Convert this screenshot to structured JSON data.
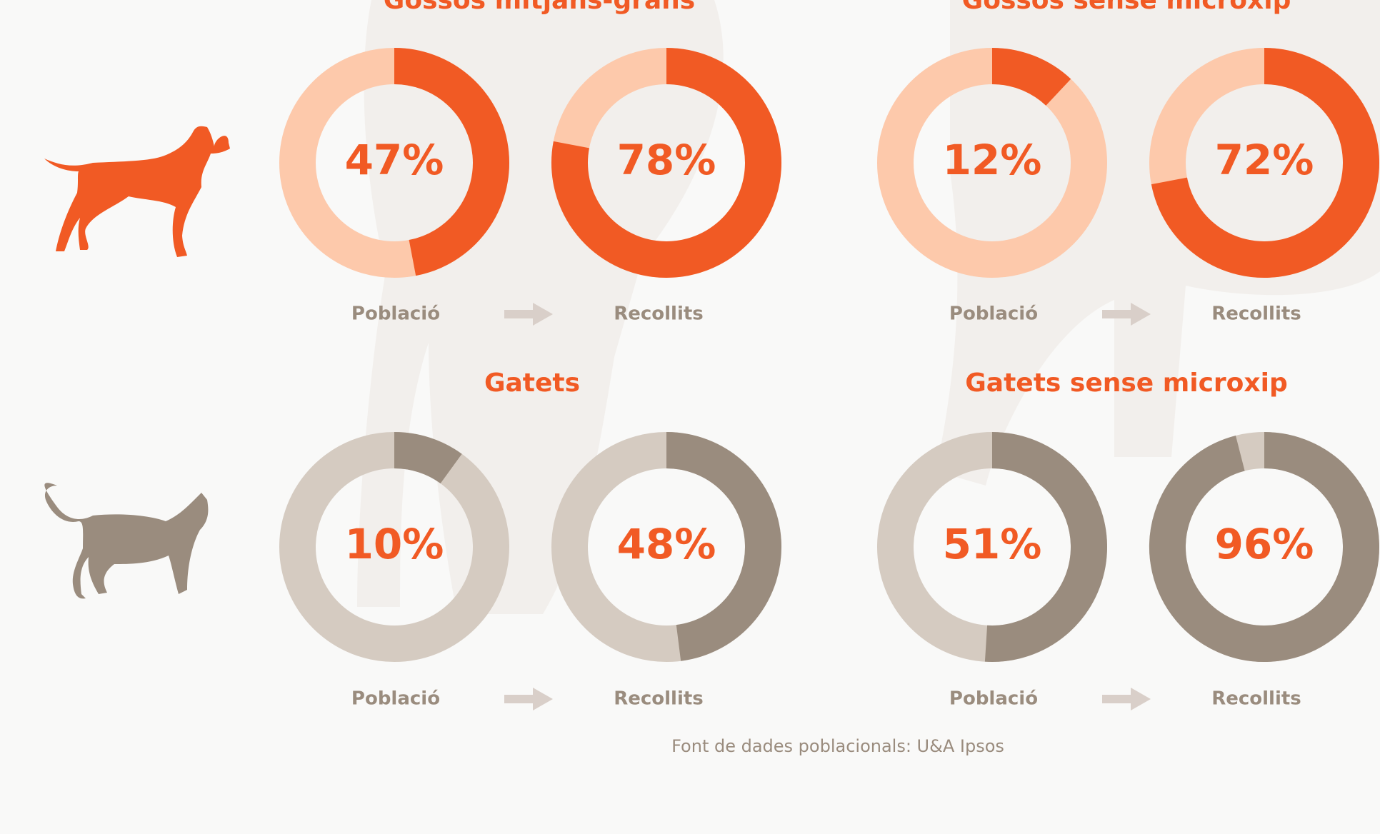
{
  "chart_data": [
    {
      "type": "donut",
      "title": "Gossos mitjans-grans",
      "categories": [
        "Població",
        "Recollits"
      ],
      "values": [
        47,
        78
      ],
      "value_labels": [
        "47%",
        "78%"
      ],
      "colors": [
        "#f15a24",
        "#fdc9ab"
      ]
    },
    {
      "type": "donut",
      "title": "Gossos sense microxip",
      "categories": [
        "Població",
        "Recollits"
      ],
      "values": [
        12,
        72
      ],
      "value_labels": [
        "12%",
        "72%"
      ],
      "colors": [
        "#f15a24",
        "#fdc9ab"
      ]
    },
    {
      "type": "donut",
      "title": "Gatets",
      "categories": [
        "Població",
        "Recollits"
      ],
      "values": [
        10,
        48
      ],
      "value_labels": [
        "10%",
        "48%"
      ],
      "colors": [
        "#9a8c7e",
        "#d5cbc1"
      ]
    },
    {
      "type": "donut",
      "title": "Gatets sense microxip",
      "categories": [
        "Població",
        "Recollits"
      ],
      "values": [
        51,
        96
      ],
      "value_labels": [
        "51%",
        "96%"
      ],
      "colors": [
        "#9a8c7e",
        "#d5cbc1"
      ]
    }
  ],
  "source": "Font de dades poblacionals: U&A Ipsos"
}
